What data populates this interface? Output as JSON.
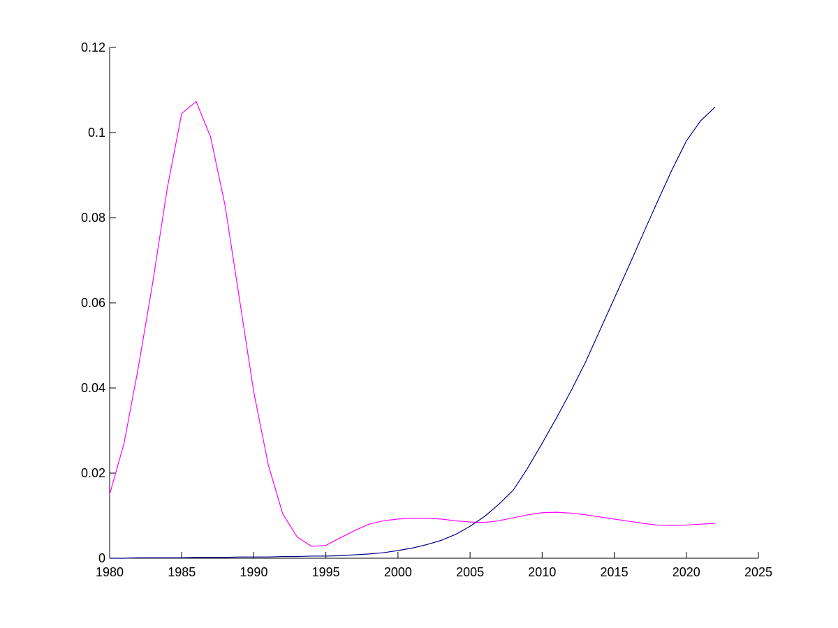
{
  "chart_data": {
    "type": "line",
    "x": [
      1980,
      1981,
      1982,
      1983,
      1984,
      1985,
      1986,
      1987,
      1988,
      1989,
      1990,
      1991,
      1992,
      1993,
      1994,
      1995,
      1996,
      1997,
      1998,
      1999,
      2000,
      2001,
      2002,
      2003,
      2004,
      2005,
      2006,
      2007,
      2008,
      2009,
      2010,
      2011,
      2012,
      2013,
      2014,
      2015,
      2016,
      2017,
      2018,
      2019,
      2020,
      2021,
      2022
    ],
    "series": [
      {
        "color": "#ff00ff",
        "values": [
          0.015,
          0.027,
          0.045,
          0.065,
          0.087,
          0.1045,
          0.1073,
          0.099,
          0.083,
          0.061,
          0.039,
          0.022,
          0.0105,
          0.005,
          0.0028,
          0.003,
          0.0048,
          0.0065,
          0.008,
          0.0088,
          0.0092,
          0.0094,
          0.0094,
          0.0092,
          0.0088,
          0.0085,
          0.0084,
          0.0088,
          0.0095,
          0.0102,
          0.0107,
          0.0108,
          0.0106,
          0.0102,
          0.0097,
          0.0092,
          0.0087,
          0.0082,
          0.0078,
          0.0077,
          0.0078,
          0.008,
          0.0082
        ]
      },
      {
        "color": "#00008b",
        "values": [
          0,
          0,
          0.0001,
          0.0001,
          0.0001,
          0.0001,
          0.0002,
          0.0002,
          0.0002,
          0.0003,
          0.0003,
          0.0003,
          0.0004,
          0.0004,
          0.0005,
          0.0005,
          0.0006,
          0.0008,
          0.001,
          0.0013,
          0.0018,
          0.0024,
          0.0032,
          0.0042,
          0.0056,
          0.0075,
          0.0098,
          0.0127,
          0.016,
          0.0212,
          0.027,
          0.033,
          0.0393,
          0.046,
          0.0535,
          0.061,
          0.0685,
          0.0762,
          0.0838,
          0.0912,
          0.098,
          0.1028,
          0.106
        ]
      }
    ],
    "xlim": [
      1980,
      2025
    ],
    "xticks": [
      1980,
      1985,
      1990,
      1995,
      2000,
      2005,
      2010,
      2015,
      2020,
      2025
    ],
    "ylim": [
      0,
      0.12
    ],
    "yticks": [
      0,
      0.02,
      0.04,
      0.06,
      0.08,
      0.1,
      0.12
    ]
  }
}
